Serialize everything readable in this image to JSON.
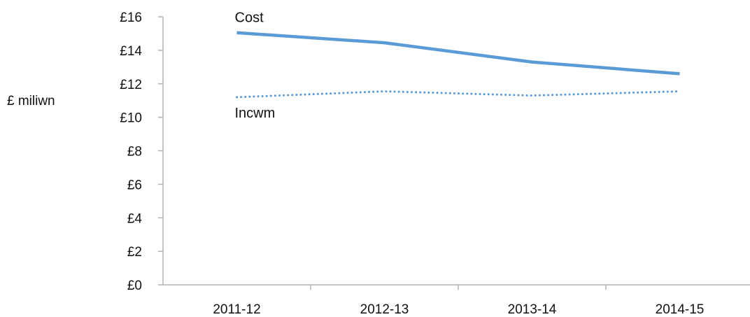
{
  "chart_data": {
    "type": "line",
    "categories": [
      "2011-12",
      "2012-13",
      "2013-14",
      "2014-15"
    ],
    "series": [
      {
        "name": "Cost",
        "values": [
          15.05,
          14.45,
          13.3,
          12.6
        ],
        "style": "solid",
        "color": "#5b9bd5"
      },
      {
        "name": "Incwm",
        "values": [
          11.2,
          11.55,
          11.3,
          11.55
        ],
        "style": "dotted",
        "color": "#5b9bd5"
      }
    ],
    "ylabel": "£ miliwn",
    "ylim": [
      0,
      16
    ],
    "yticks": [
      0,
      2,
      4,
      6,
      8,
      10,
      12,
      14,
      16
    ],
    "ytick_labels": [
      "£0",
      "£2",
      "£4",
      "£6",
      "£8",
      "£10",
      "£12",
      "£14",
      "£16"
    ],
    "grid": false,
    "legend": "inline"
  }
}
